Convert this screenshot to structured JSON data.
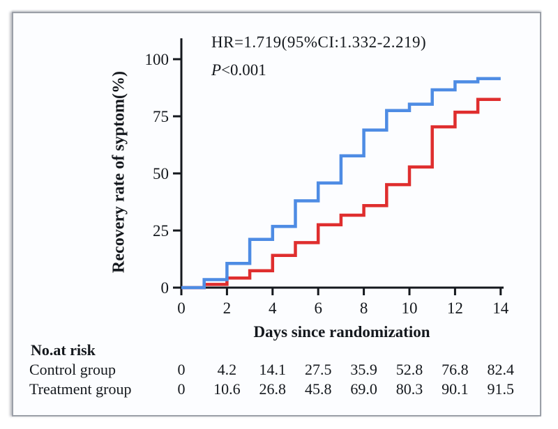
{
  "figure": {
    "annotation_hr": "HR=1.719(95%CI:1.332-2.219)",
    "p_label": "P",
    "p_value": "<0.001",
    "y_axis_label": "Recovery rate of syptom(%)",
    "x_axis_label": "Days since randomization"
  },
  "risk_table": {
    "title": "No.at risk",
    "column_days": [
      0,
      2,
      4,
      6,
      8,
      10,
      12,
      14
    ],
    "rows": [
      {
        "label": "Control group",
        "values": [
          "0",
          "4.2",
          "14.1",
          "27.5",
          "35.9",
          "52.8",
          "76.8",
          "82.4"
        ]
      },
      {
        "label": "Treatment group",
        "values": [
          "0",
          "10.6",
          "26.8",
          "45.8",
          "69.0",
          "80.3",
          "90.1",
          "91.5"
        ]
      }
    ]
  },
  "chart_data": {
    "type": "line",
    "subtype": "step-after",
    "title": "",
    "xlabel": "Days since randomization",
    "ylabel": "Recovery rate of syptom(%)",
    "xlim": [
      0,
      14
    ],
    "ylim": [
      0,
      100
    ],
    "x_ticks": [
      0,
      2,
      4,
      6,
      8,
      10,
      12,
      14
    ],
    "y_ticks": [
      0,
      25,
      50,
      75,
      100
    ],
    "grid": false,
    "legend": "none",
    "annotations": [
      "HR=1.719(95%CI:1.332-2.219)",
      "P<0.001"
    ],
    "x": [
      0,
      1,
      2,
      3,
      4,
      5,
      6,
      7,
      8,
      9,
      10,
      11,
      12,
      13,
      14
    ],
    "series": [
      {
        "name": "Control group",
        "color": "#DF2E2E",
        "values": [
          0,
          1.4,
          4.2,
          7.4,
          14.1,
          19.7,
          27.5,
          31.7,
          35.9,
          45.1,
          52.8,
          70.4,
          76.8,
          82.4,
          82.4
        ]
      },
      {
        "name": "Treatment group",
        "color": "#4E8CE4",
        "values": [
          0,
          3.5,
          10.6,
          21.1,
          26.8,
          38.0,
          45.8,
          57.7,
          69.0,
          77.5,
          80.3,
          86.6,
          90.1,
          91.5,
          91.5
        ]
      }
    ]
  },
  "colors": {
    "control_line": "#DF2E2E",
    "treatment_line": "#4E8CE4",
    "axis": "#14181d",
    "card_background": "#fcfdff",
    "card_border": "#9ba0a8"
  }
}
